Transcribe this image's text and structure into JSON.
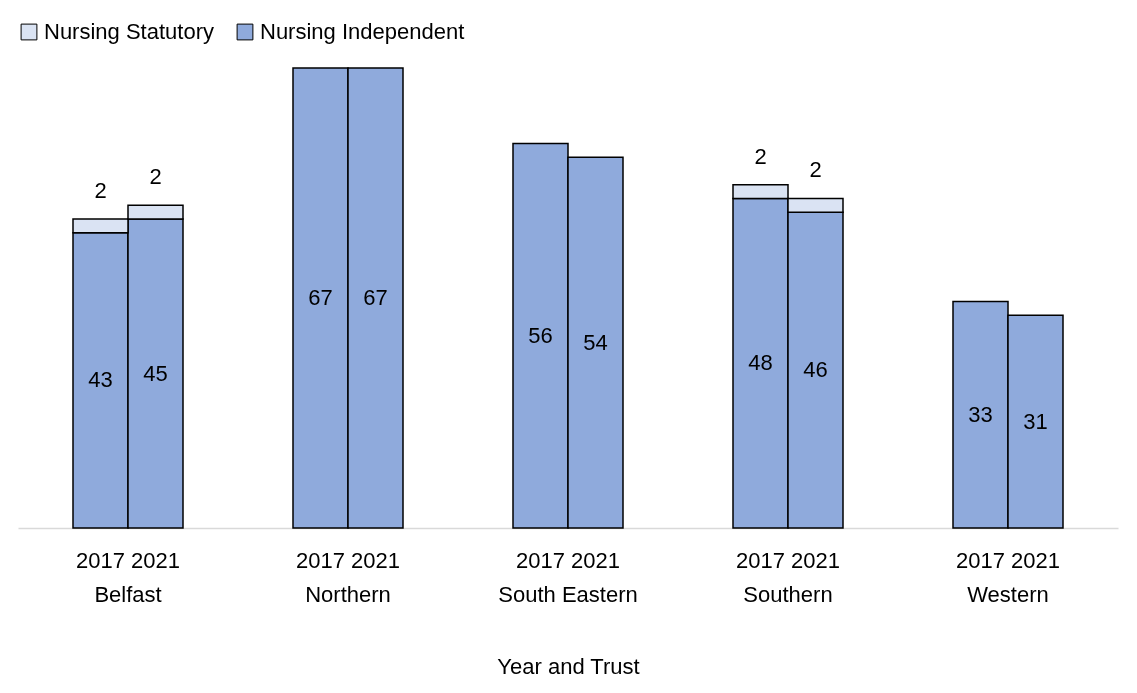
{
  "chart_data": {
    "type": "bar",
    "stacked": true,
    "xlabel": "Year and Trust",
    "categories": [
      null,
      "2017",
      "2021",
      null,
      null,
      "2017",
      "2021",
      null,
      null,
      "2017",
      "2021",
      null,
      null,
      "2017",
      "2021",
      null,
      null,
      "2017",
      "2021",
      null
    ],
    "annotations": [
      "Belfast",
      "Northern",
      "South Eastern",
      "Southern",
      "Western"
    ],
    "series": [
      {
        "name": "Nursing Independent",
        "color": "#8faadc",
        "values": [
          null,
          43,
          45,
          null,
          null,
          67,
          67,
          null,
          null,
          56,
          54,
          null,
          null,
          48,
          46,
          null,
          null,
          33,
          31,
          null
        ]
      },
      {
        "name": "Nursing Statutory",
        "color": "#dae3f3",
        "values": [
          null,
          2,
          2,
          null,
          null,
          null,
          null,
          null,
          null,
          null,
          null,
          null,
          null,
          2,
          2,
          null,
          null,
          null,
          null,
          null
        ]
      }
    ],
    "data_labels": true,
    "legend": "top",
    "grid": false
  }
}
